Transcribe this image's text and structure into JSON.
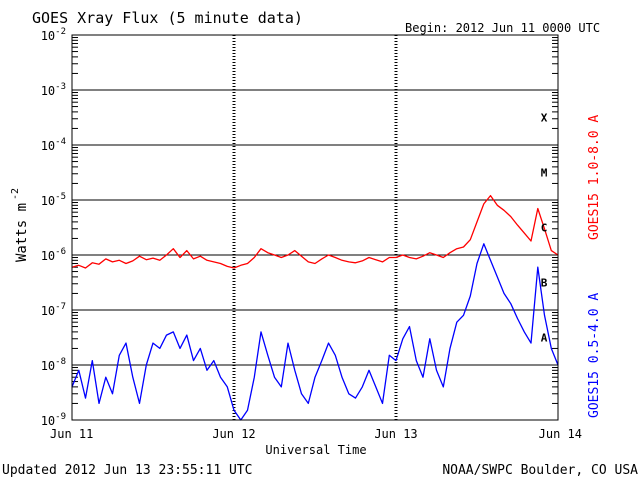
{
  "header": {
    "title": "GOES Xray Flux (5 minute data)",
    "begin": "Begin:  2012 Jun 11 0000 UTC"
  },
  "footer": {
    "updated": "Updated 2012 Jun 13 23:55:11 UTC",
    "credit": "NOAA/SWPC Boulder, CO USA"
  },
  "colors": {
    "long_channel": "#ff0000",
    "short_channel": "#0000ff",
    "axis": "#000000"
  },
  "chart_data": {
    "type": "line",
    "ylabel_main": "Watts m",
    "ylabel_exp": "-2",
    "xlabel": "Universal Time",
    "yscale": "log",
    "ylim": [
      1e-09,
      0.01
    ],
    "xlim": [
      0,
      72
    ],
    "x_units": "hours since Jun 11 0000 UTC",
    "x_ticks": [
      {
        "x": 0,
        "label": "Jun 11"
      },
      {
        "x": 24,
        "label": "Jun 12"
      },
      {
        "x": 48,
        "label": "Jun 13"
      },
      {
        "x": 72,
        "label": "Jun 14"
      }
    ],
    "y_ticks": [
      {
        "exp": -9,
        "base": "10",
        "sup": "-9"
      },
      {
        "exp": -8,
        "base": "10",
        "sup": "-8"
      },
      {
        "exp": -7,
        "base": "10",
        "sup": "-7"
      },
      {
        "exp": -6,
        "base": "10",
        "sup": "-6"
      },
      {
        "exp": -5,
        "base": "10",
        "sup": "-5"
      },
      {
        "exp": -4,
        "base": "10",
        "sup": "-4"
      },
      {
        "exp": -3,
        "base": "10",
        "sup": "-3"
      },
      {
        "exp": -2,
        "base": "10",
        "sup": "-2"
      }
    ],
    "grid": "horizontal at each decade",
    "flare_classes": [
      {
        "label": "A",
        "exp": -7.5
      },
      {
        "label": "B",
        "exp": -6.5
      },
      {
        "label": "C",
        "exp": -5.5
      },
      {
        "label": "M",
        "exp": -4.5
      },
      {
        "label": "X",
        "exp": -3.5
      }
    ],
    "series": [
      {
        "name": "GOES15 1.0-8.0 A",
        "color": "#ff0000",
        "points": [
          [
            0,
            6e-07
          ],
          [
            1,
            6.5e-07
          ],
          [
            2,
            5.8e-07
          ],
          [
            3,
            7.2e-07
          ],
          [
            4,
            6.8e-07
          ],
          [
            5,
            8.5e-07
          ],
          [
            6,
            7.5e-07
          ],
          [
            7,
            8e-07
          ],
          [
            8,
            7e-07
          ],
          [
            9,
            7.8e-07
          ],
          [
            10,
            9.5e-07
          ],
          [
            11,
            8.2e-07
          ],
          [
            12,
            8.8e-07
          ],
          [
            13,
            8e-07
          ],
          [
            14,
            1e-06
          ],
          [
            15,
            1.3e-06
          ],
          [
            16,
            9e-07
          ],
          [
            17,
            1.2e-06
          ],
          [
            18,
            8.5e-07
          ],
          [
            19,
            9.5e-07
          ],
          [
            20,
            8e-07
          ],
          [
            21,
            7.5e-07
          ],
          [
            22,
            7e-07
          ],
          [
            23,
            6.2e-07
          ],
          [
            24,
            5.8e-07
          ],
          [
            25,
            6.5e-07
          ],
          [
            26,
            7e-07
          ],
          [
            27,
            9e-07
          ],
          [
            28,
            1.3e-06
          ],
          [
            29,
            1.1e-06
          ],
          [
            30,
            1e-06
          ],
          [
            31,
            9e-07
          ],
          [
            32,
            1e-06
          ],
          [
            33,
            1.2e-06
          ],
          [
            34,
            9.5e-07
          ],
          [
            35,
            7.5e-07
          ],
          [
            36,
            7e-07
          ],
          [
            37,
            8.5e-07
          ],
          [
            38,
            1e-06
          ],
          [
            39,
            9e-07
          ],
          [
            40,
            8e-07
          ],
          [
            41,
            7.5e-07
          ],
          [
            42,
            7.2e-07
          ],
          [
            43,
            7.8e-07
          ],
          [
            44,
            9e-07
          ],
          [
            45,
            8.2e-07
          ],
          [
            46,
            7.5e-07
          ],
          [
            47,
            9e-07
          ],
          [
            48,
            9e-07
          ],
          [
            49,
            1e-06
          ],
          [
            50,
            9e-07
          ],
          [
            51,
            8.5e-07
          ],
          [
            52,
            9.5e-07
          ],
          [
            53,
            1.1e-06
          ],
          [
            54,
            1e-06
          ],
          [
            55,
            9e-07
          ],
          [
            56,
            1.1e-06
          ],
          [
            57,
            1.3e-06
          ],
          [
            58,
            1.4e-06
          ],
          [
            59,
            1.9e-06
          ],
          [
            60,
            4e-06
          ],
          [
            61,
            8.5e-06
          ],
          [
            62,
            1.2e-05
          ],
          [
            63,
            8e-06
          ],
          [
            64,
            6.5e-06
          ],
          [
            65,
            5e-06
          ],
          [
            66,
            3.5e-06
          ],
          [
            67,
            2.5e-06
          ],
          [
            68,
            1.8e-06
          ],
          [
            69,
            7e-06
          ],
          [
            70,
            3e-06
          ],
          [
            71,
            1.2e-06
          ],
          [
            72,
            1e-06
          ]
        ]
      },
      {
        "name": "GOES15 0.5-4.0 A",
        "color": "#0000ff",
        "points": [
          [
            0,
            4e-09
          ],
          [
            1,
            8e-09
          ],
          [
            2,
            2.5e-09
          ],
          [
            3,
            1.2e-08
          ],
          [
            4,
            2e-09
          ],
          [
            5,
            6e-09
          ],
          [
            6,
            3e-09
          ],
          [
            7,
            1.5e-08
          ],
          [
            8,
            2.5e-08
          ],
          [
            9,
            6e-09
          ],
          [
            10,
            2e-09
          ],
          [
            11,
            1e-08
          ],
          [
            12,
            2.5e-08
          ],
          [
            13,
            2e-08
          ],
          [
            14,
            3.5e-08
          ],
          [
            15,
            4e-08
          ],
          [
            16,
            2e-08
          ],
          [
            17,
            3.5e-08
          ],
          [
            18,
            1.2e-08
          ],
          [
            19,
            2e-08
          ],
          [
            20,
            8e-09
          ],
          [
            21,
            1.2e-08
          ],
          [
            22,
            6e-09
          ],
          [
            23,
            4e-09
          ],
          [
            24,
            1.5e-09
          ],
          [
            25,
            1e-09
          ],
          [
            26,
            1.5e-09
          ],
          [
            27,
            6e-09
          ],
          [
            28,
            4e-08
          ],
          [
            29,
            1.5e-08
          ],
          [
            30,
            6e-09
          ],
          [
            31,
            4e-09
          ],
          [
            32,
            2.5e-08
          ],
          [
            33,
            8e-09
          ],
          [
            34,
            3e-09
          ],
          [
            35,
            2e-09
          ],
          [
            36,
            6e-09
          ],
          [
            37,
            1.2e-08
          ],
          [
            38,
            2.5e-08
          ],
          [
            39,
            1.5e-08
          ],
          [
            40,
            6e-09
          ],
          [
            41,
            3e-09
          ],
          [
            42,
            2.5e-09
          ],
          [
            43,
            4e-09
          ],
          [
            44,
            8e-09
          ],
          [
            45,
            4e-09
          ],
          [
            46,
            2e-09
          ],
          [
            47,
            1.5e-08
          ],
          [
            48,
            1.2e-08
          ],
          [
            49,
            3e-08
          ],
          [
            50,
            5e-08
          ],
          [
            51,
            1.2e-08
          ],
          [
            52,
            6e-09
          ],
          [
            53,
            3e-08
          ],
          [
            54,
            8e-09
          ],
          [
            55,
            4e-09
          ],
          [
            56,
            2e-08
          ],
          [
            57,
            6e-08
          ],
          [
            58,
            8e-08
          ],
          [
            59,
            1.8e-07
          ],
          [
            60,
            7e-07
          ],
          [
            61,
            1.6e-06
          ],
          [
            62,
            8e-07
          ],
          [
            63,
            4e-07
          ],
          [
            64,
            2e-07
          ],
          [
            65,
            1.3e-07
          ],
          [
            66,
            7e-08
          ],
          [
            67,
            4e-08
          ],
          [
            68,
            2.5e-08
          ],
          [
            69,
            6e-07
          ],
          [
            70,
            8e-08
          ],
          [
            71,
            2e-08
          ],
          [
            72,
            1e-08
          ]
        ]
      }
    ]
  }
}
